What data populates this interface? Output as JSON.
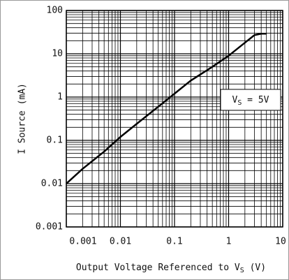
{
  "chart_data": {
    "type": "line",
    "log_x": true,
    "log_y": true,
    "grid": true,
    "minor_grid": true,
    "y_label": "I Source (mA)",
    "x_label": [
      "Output Voltage Referenced to V",
      "S",
      " (V)"
    ],
    "annotation": [
      "V",
      "S",
      " = 5V"
    ],
    "xlim": [
      0.001,
      10
    ],
    "xticks": [
      0.001,
      0.01,
      0.1,
      1,
      10
    ],
    "ylim": [
      0.001,
      100
    ],
    "yticks": [
      0.001,
      0.01,
      0.1,
      1,
      10,
      100
    ],
    "series": [
      {
        "color": "#000000",
        "x": [
          0.001,
          0.002,
          0.005,
          0.01,
          0.02,
          0.05,
          0.1,
          0.2,
          0.5,
          1,
          2,
          3,
          4,
          5
        ],
        "values": [
          0.01,
          0.022,
          0.055,
          0.12,
          0.24,
          0.6,
          1.2,
          2.4,
          5,
          9,
          18,
          27,
          29,
          29
        ]
      }
    ]
  }
}
